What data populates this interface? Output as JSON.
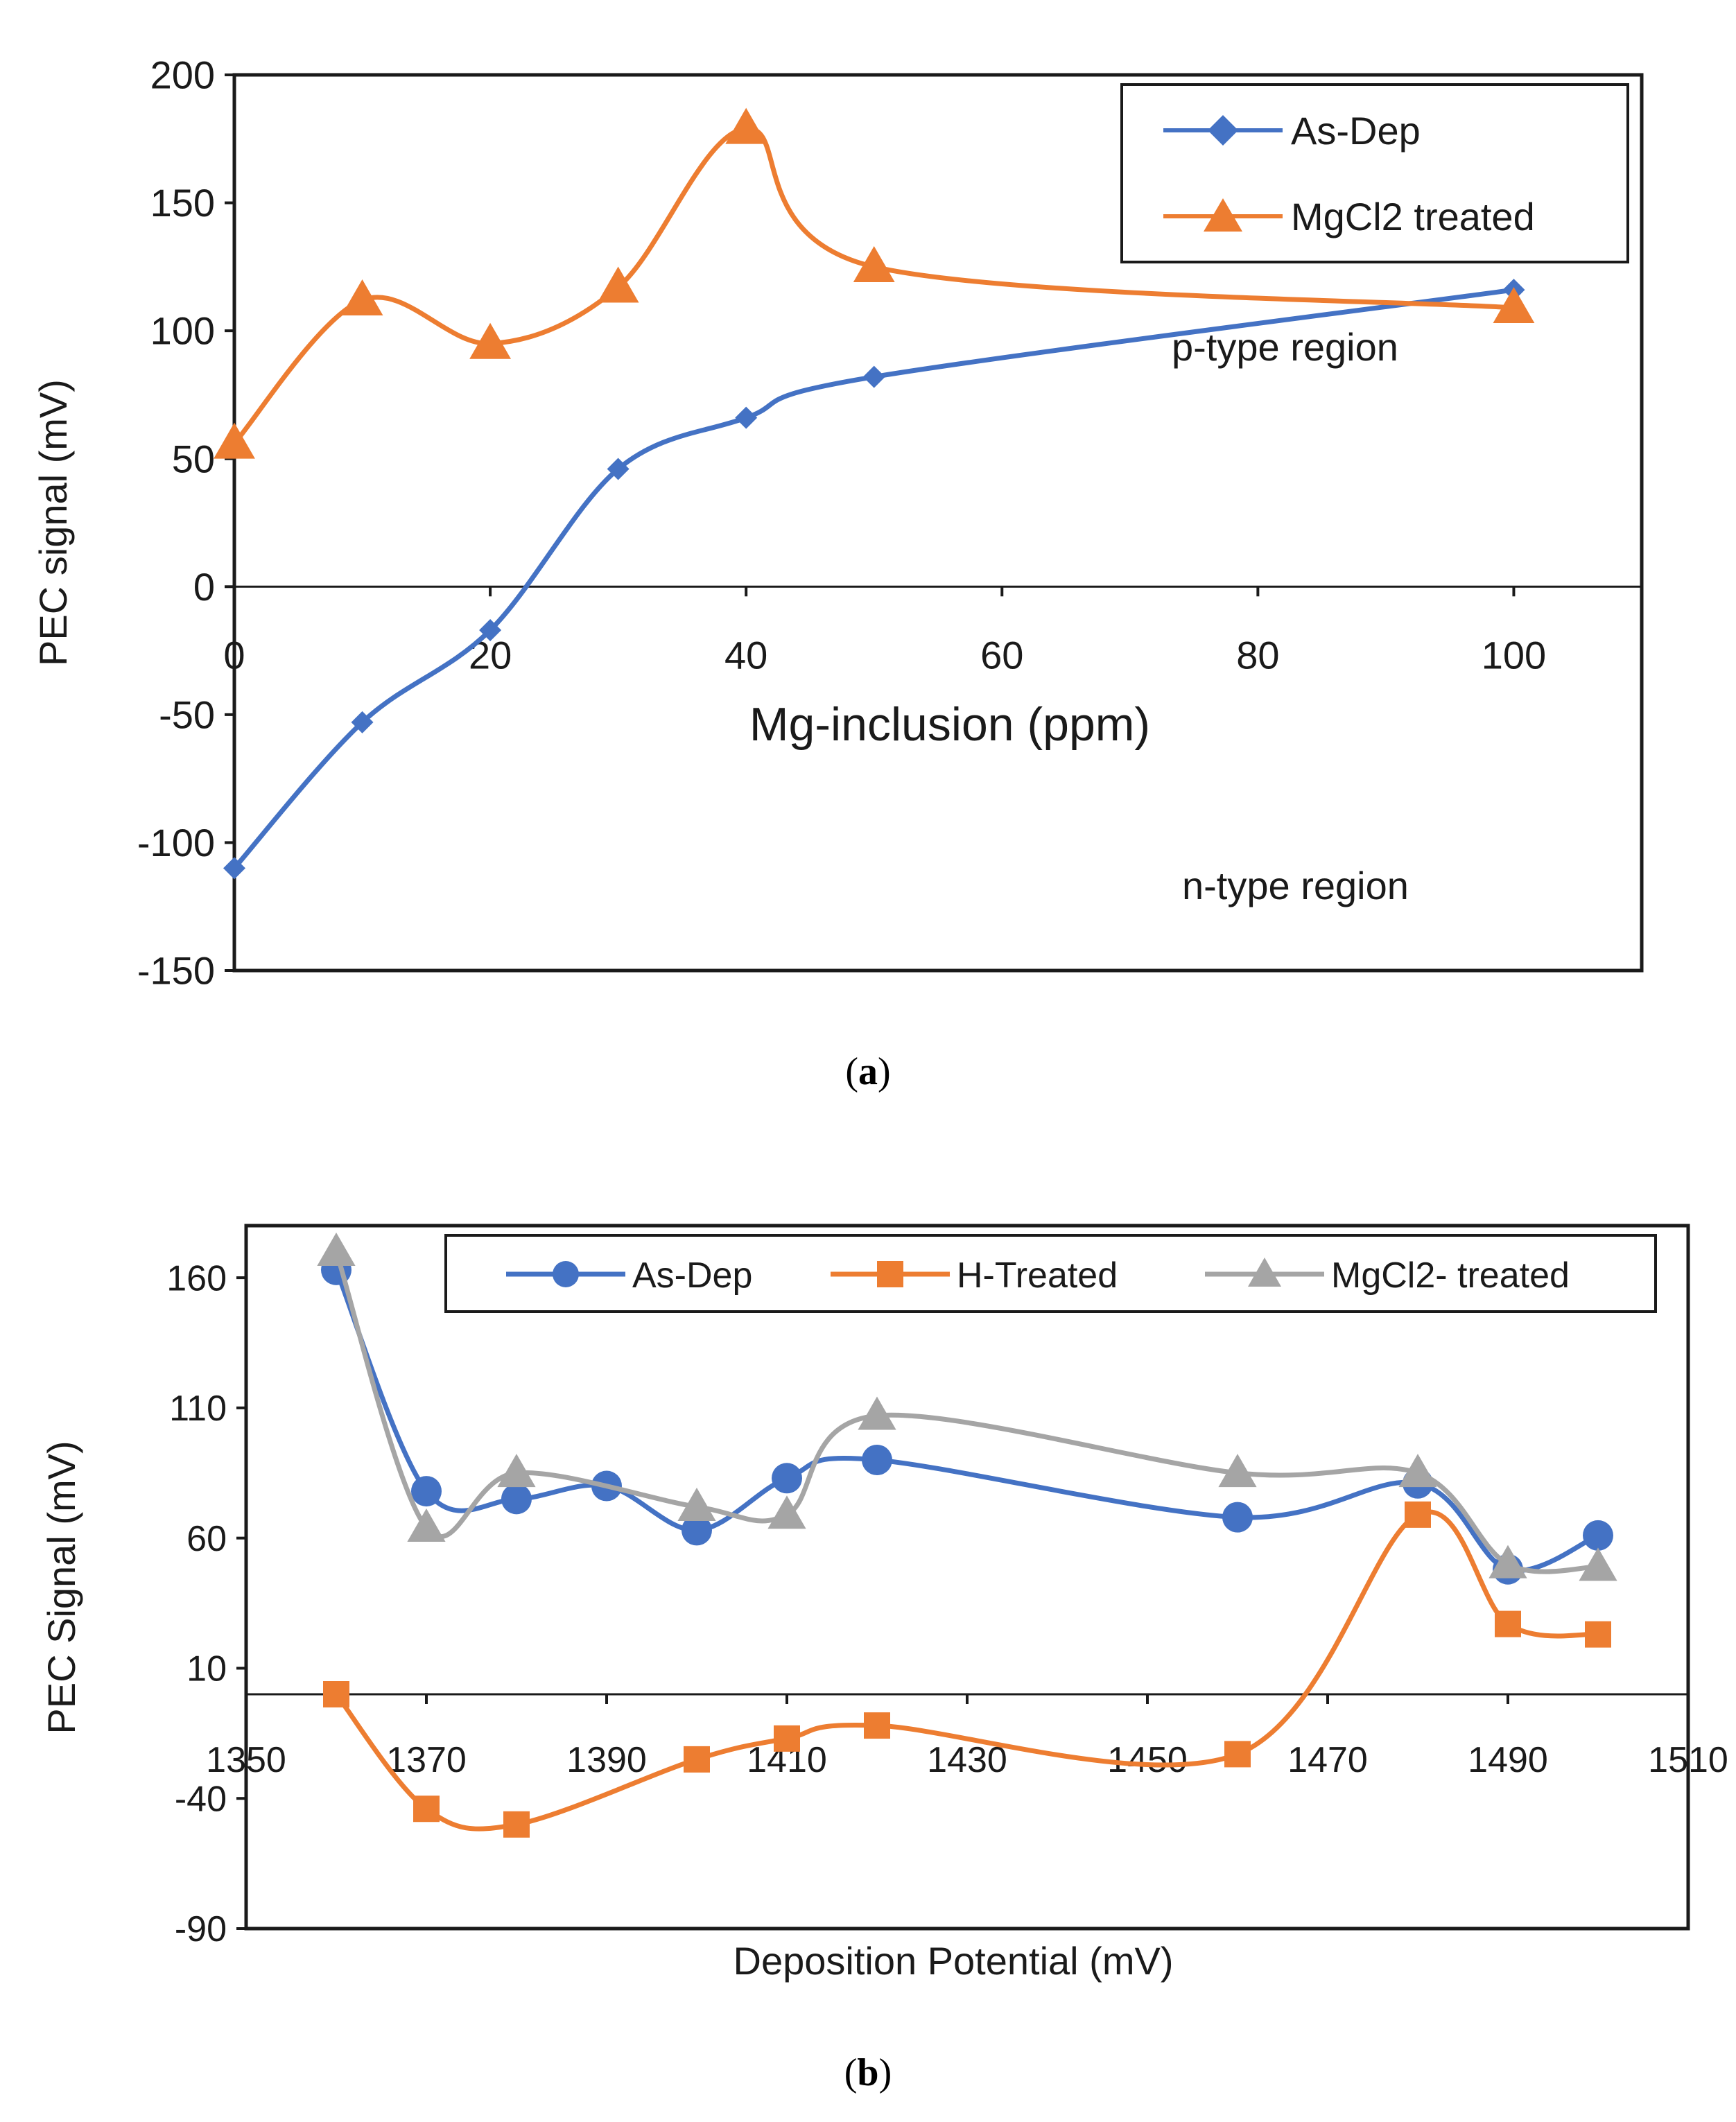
{
  "chart_data": [
    {
      "type": "line",
      "panel": "a",
      "panel_label": "a",
      "xlabel": "Mg-inclusion (ppm)",
      "ylabel": "PEC signal (mV)",
      "xlim": [
        0,
        110
      ],
      "ylim": [
        -150,
        200
      ],
      "xticks": [
        0,
        20,
        40,
        60,
        80,
        100
      ],
      "yticks": [
        200,
        150,
        100,
        50,
        0,
        -50,
        -100,
        -150
      ],
      "grid": false,
      "legend_position": "top-right",
      "x": [
        0,
        10,
        20,
        30,
        40,
        50,
        100
      ],
      "series": [
        {
          "name": "As-Dep",
          "marker": "diamond",
          "color": "#4472C4",
          "values": [
            -110,
            -53,
            -17,
            46,
            66,
            82,
            116
          ]
        },
        {
          "name": "MgCl2 treated",
          "marker": "triangle",
          "color": "#ED7D31",
          "values": [
            56,
            112,
            95,
            117,
            179,
            125,
            109
          ]
        }
      ],
      "annotations": [
        {
          "text": "p-type region",
          "x": 85,
          "y": 92
        },
        {
          "text": "n-type region",
          "x": 85,
          "y": -118
        }
      ]
    },
    {
      "type": "line",
      "panel": "b",
      "panel_label": "b",
      "xlabel": "Deposition Potential (mV)",
      "ylabel": "PEC Signal (mV)",
      "xlim": [
        1350,
        1510
      ],
      "ylim": [
        -90,
        180
      ],
      "xticks": [
        1350,
        1370,
        1390,
        1410,
        1430,
        1450,
        1470,
        1490,
        1510
      ],
      "yticks": [
        160,
        110,
        60,
        10,
        -40,
        -90
      ],
      "grid": false,
      "legend_position": "top",
      "x": [
        1360,
        1370,
        1380,
        1390,
        1400,
        1410,
        1420,
        1460,
        1480,
        1490,
        1500
      ],
      "series": [
        {
          "name": "As-Dep",
          "marker": "circle",
          "color": "#4472C4",
          "values": [
            163,
            78,
            75,
            80,
            63,
            83,
            90,
            68,
            81,
            48,
            61
          ]
        },
        {
          "name": "H-Treated",
          "marker": "square",
          "color": "#ED7D31",
          "values": [
            0,
            -44,
            -50,
            null,
            -25,
            -17,
            -12,
            -23,
            69,
            27,
            23
          ]
        },
        {
          "name": "MgCl2- treated",
          "marker": "triangle",
          "color": "#A5A5A5",
          "values": [
            170,
            64,
            85,
            null,
            72,
            69,
            107,
            85,
            85,
            50,
            49
          ]
        }
      ]
    }
  ]
}
